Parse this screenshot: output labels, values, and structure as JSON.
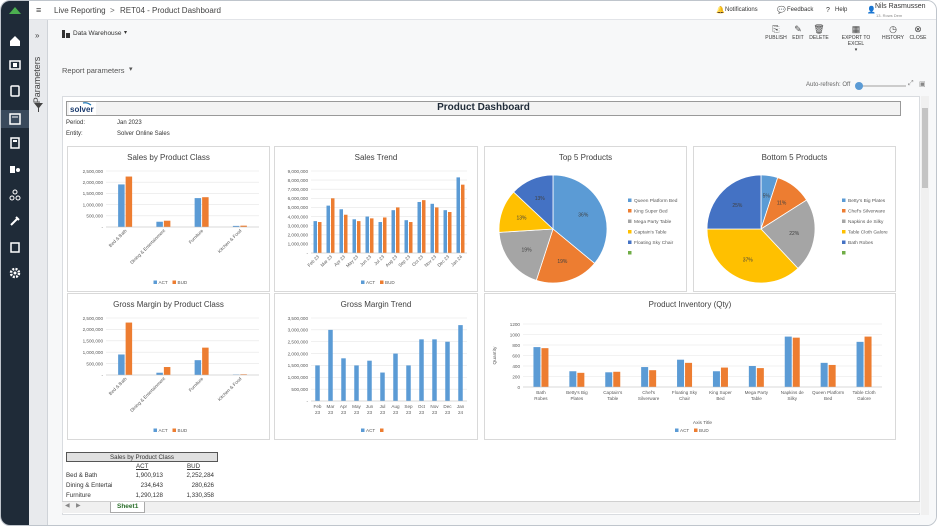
{
  "topbar": {
    "breadcrumb_root": "Live Reporting",
    "breadcrumb_sep": ">",
    "breadcrumb_page": "RET04 - Product Dashboard",
    "notifications": "Notifications",
    "feedback": "Feedback",
    "help": "Help",
    "user_name": "Nils Rasmussen",
    "user_sub": "13. Rows Dem"
  },
  "toolbar": {
    "datasource": "Data Warehouse",
    "publish": "PUBLISH",
    "edit": "EDIT",
    "delete": "DELETE",
    "export": "EXPORT TO EXCEL",
    "history": "HISTORY",
    "close": "CLOSE"
  },
  "params_label": "Parameters",
  "report_params": "Report parameters",
  "auto_refresh": "Auto-refresh: Off",
  "report": {
    "logo": "solver",
    "title": "Product Dashboard",
    "period_label": "Period:",
    "period_value": "Jan 2023",
    "entity_label": "Entity:",
    "entity_value": "Solver Online Sales"
  },
  "colors": {
    "act": "#5b9bd5",
    "bud": "#ed7d31",
    "nav": "#1f2b38"
  },
  "chart_data": [
    {
      "id": "sales_class",
      "type": "bar",
      "title": "Sales by Product Class",
      "categories": [
        "Bed & Bath",
        "Dining & Entertainment",
        "Furniture",
        "Kitchen & Food"
      ],
      "series": [
        {
          "name": "ACT",
          "values": [
            1900913,
            234643,
            1290128,
            50000
          ]
        },
        {
          "name": "BUD",
          "values": [
            2252284,
            280626,
            1330358,
            60000
          ]
        }
      ],
      "ylim": [
        0,
        2500000
      ],
      "yticks": [
        "-",
        "500,000",
        "1,000,000",
        "1,500,000",
        "2,000,000",
        "2,500,000"
      ]
    },
    {
      "id": "sales_trend",
      "type": "bar",
      "title": "Sales Trend",
      "categories": [
        "Feb 23",
        "Mar 23",
        "Apr 23",
        "May 23",
        "Jun 23",
        "Jul 23",
        "Aug 23",
        "Sep 23",
        "Oct 23",
        "Nov 23",
        "Dec 23",
        "Jan 24"
      ],
      "series": [
        {
          "name": "ACT",
          "values": [
            3500000,
            5200000,
            4800000,
            3700000,
            4000000,
            3400000,
            4700000,
            3600000,
            5600000,
            5400000,
            4700000,
            8300000
          ]
        },
        {
          "name": "BUD",
          "values": [
            3400000,
            6000000,
            4200000,
            3500000,
            3800000,
            3900000,
            5000000,
            3400000,
            5800000,
            5000000,
            4500000,
            7500000
          ]
        }
      ],
      "ylim": [
        0,
        9000000
      ],
      "yticks": [
        "-",
        "1,000,000",
        "2,000,000",
        "3,000,000",
        "4,000,000",
        "5,000,000",
        "6,000,000",
        "7,000,000",
        "8,000,000",
        "9,000,000"
      ]
    },
    {
      "id": "top5",
      "type": "pie",
      "title": "Top 5 Products",
      "labels": [
        "Queen Platform Bed",
        "King Super Bed",
        "Mega Party Table",
        "Captain's Table",
        "Floating Sky Chair"
      ],
      "values": [
        36,
        19,
        19,
        13,
        13
      ],
      "colors": [
        "#5b9bd5",
        "#ed7d31",
        "#a5a5a5",
        "#ffc000",
        "#4472c4"
      ]
    },
    {
      "id": "bottom5",
      "type": "pie",
      "title": "Bottom 5 Products",
      "labels": [
        "Betty's Big Plates",
        "Chef's Silverware",
        "Napkins de Silky",
        "Table Cloth Galore",
        "Bath Robes"
      ],
      "values": [
        5,
        11,
        22,
        37,
        25
      ],
      "colors": [
        "#5b9bd5",
        "#ed7d31",
        "#a5a5a5",
        "#ffc000",
        "#4472c4"
      ]
    },
    {
      "id": "gm_class",
      "type": "bar",
      "title": "Gross Margin by Product Class",
      "categories": [
        "Bed & Bath",
        "Dining & Entertainment",
        "Furniture",
        "Kitchen & Food"
      ],
      "series": [
        {
          "name": "ACT",
          "values": [
            900000,
            100000,
            650000,
            20000
          ]
        },
        {
          "name": "BUD",
          "values": [
            2300000,
            350000,
            1200000,
            30000
          ]
        }
      ],
      "ylim": [
        0,
        2500000
      ],
      "yticks": [
        "-",
        "500,000",
        "1,000,000",
        "1,500,000",
        "2,000,000",
        "2,500,000"
      ]
    },
    {
      "id": "gm_trend",
      "type": "bar",
      "title": "Gross Margin Trend",
      "categories": [
        "Feb 23",
        "Mar 23",
        "Apr 23",
        "May 23",
        "Jun 23",
        "Jul 23",
        "Aug 23",
        "Sep 23",
        "Oct 23",
        "Nov 23",
        "Dec 23",
        "Jan 24"
      ],
      "series": [
        {
          "name": "ACT",
          "values": [
            1500000,
            3000000,
            1800000,
            1500000,
            1700000,
            1200000,
            2000000,
            1500000,
            2600000,
            2600000,
            2500000,
            3200000
          ]
        }
      ],
      "ylim": [
        0,
        3500000
      ],
      "yticks": [
        "-",
        "500,000",
        "1,000,000",
        "1,500,000",
        "2,000,000",
        "2,500,000",
        "3,000,000",
        "3,500,000"
      ]
    },
    {
      "id": "inventory",
      "type": "bar",
      "title": "Product Inventory (Qty)",
      "categories": [
        "Bath Robes",
        "Betty's Big Plates",
        "Captain's Table",
        "Chef's Silverware",
        "Floating Sky Chair",
        "King Super Bed",
        "Mega Party Table",
        "Napkins de Silky",
        "Queen Platform Bed",
        "Table Cloth Galore"
      ],
      "series": [
        {
          "name": "ACT",
          "values": [
            760,
            300,
            280,
            380,
            520,
            300,
            400,
            960,
            460,
            860
          ]
        },
        {
          "name": "BUD",
          "values": [
            740,
            270,
            290,
            320,
            460,
            370,
            360,
            940,
            420,
            960
          ]
        }
      ],
      "ylim": [
        0,
        1200
      ],
      "yticks": [
        "0",
        "200",
        "400",
        "600",
        "800",
        "1000",
        "1200"
      ],
      "ylabel": "Quantity",
      "xlabel": "Axis Title"
    }
  ],
  "legend": {
    "act": "ACT",
    "bud": "BUD"
  },
  "table": {
    "title": "Sales by Product Class",
    "headers": [
      "ACT",
      "BUD"
    ],
    "rows": [
      [
        "Bed & Bath",
        "1,900,913",
        "2,252,284"
      ],
      [
        "Dining & Entertai",
        "234,643",
        "280,626"
      ],
      [
        "Furniture",
        "1,290,128",
        "1,330,358"
      ]
    ]
  },
  "sheet_tab": "Sheet1"
}
